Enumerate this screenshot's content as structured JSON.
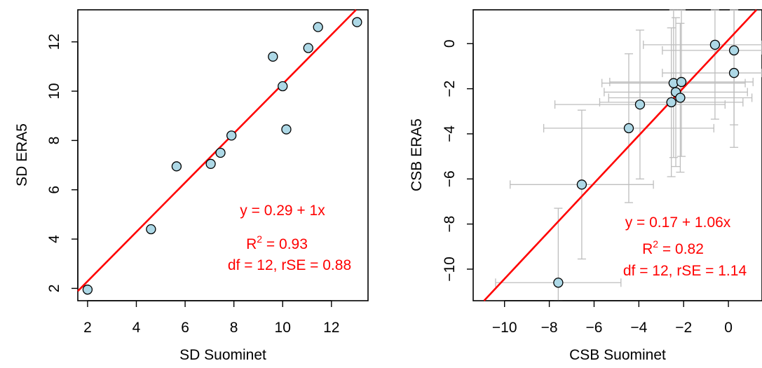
{
  "chart_data": [
    {
      "type": "scatter",
      "xlabel": "SD Suominet",
      "ylabel": "SD ERA5",
      "xlim": [
        1.6,
        13.5
      ],
      "ylim": [
        1.5,
        13.3
      ],
      "xticks": [
        2,
        4,
        6,
        8,
        10,
        12
      ],
      "yticks": [
        2,
        4,
        6,
        8,
        10,
        12
      ],
      "points": [
        {
          "x": 2.0,
          "y": 1.95
        },
        {
          "x": 4.6,
          "y": 4.4
        },
        {
          "x": 5.65,
          "y": 6.95
        },
        {
          "x": 7.05,
          "y": 7.05
        },
        {
          "x": 7.45,
          "y": 7.5
        },
        {
          "x": 7.9,
          "y": 8.2
        },
        {
          "x": 9.6,
          "y": 11.4
        },
        {
          "x": 10.0,
          "y": 10.2
        },
        {
          "x": 10.15,
          "y": 8.45
        },
        {
          "x": 11.05,
          "y": 11.75
        },
        {
          "x": 11.45,
          "y": 12.6
        },
        {
          "x": 13.05,
          "y": 12.8
        }
      ],
      "fit": {
        "intercept": 0.29,
        "slope": 1.0
      },
      "annotations": [
        "y = 0.29 + 1x",
        "R",
        "2",
        " = 0.93",
        "df = 12, rSE = 0.88"
      ],
      "colors": {
        "points_fill": "#add8e6",
        "fit_line": "#ff0000",
        "annotation": "#ff0000"
      },
      "grid": false
    },
    {
      "type": "scatter",
      "xlabel": "CSB Suominet",
      "ylabel": "CSB ERA5",
      "xlim": [
        -11.4,
        1.5
      ],
      "ylim": [
        -11.4,
        1.5
      ],
      "xticks": [
        -10,
        -8,
        -6,
        -4,
        -2,
        0
      ],
      "yticks": [
        -10,
        -8,
        -6,
        -4,
        -2,
        0
      ],
      "xtick_labels": [
        "−10",
        "−8",
        "−6",
        "−4",
        "−2",
        "0"
      ],
      "ytick_labels": [
        "−10",
        "−8",
        "−6",
        "−4",
        "−2",
        "0"
      ],
      "points": [
        {
          "x": -7.6,
          "y": -10.6,
          "xerr": 2.8,
          "yerr": 3.3
        },
        {
          "x": -6.55,
          "y": -6.25,
          "xerr": 3.2,
          "yerr": 3.3
        },
        {
          "x": -4.45,
          "y": -3.75,
          "xerr": 3.8,
          "yerr": 3.3
        },
        {
          "x": -3.95,
          "y": -2.7,
          "xerr": 3.8,
          "yerr": 3.3
        },
        {
          "x": -2.55,
          "y": -2.6,
          "xerr": 3.2,
          "yerr": 3.3
        },
        {
          "x": -2.45,
          "y": -1.75,
          "xerr": 3.2,
          "yerr": 3.3
        },
        {
          "x": -2.35,
          "y": -2.15,
          "xerr": 3.2,
          "yerr": 3.3
        },
        {
          "x": -2.15,
          "y": -2.4,
          "xerr": 3.2,
          "yerr": 3.3
        },
        {
          "x": -2.1,
          "y": -1.7,
          "xerr": 3.2,
          "yerr": 3.3
        },
        {
          "x": -0.6,
          "y": -0.05,
          "xerr": 3.2,
          "yerr": 3.3
        },
        {
          "x": 0.25,
          "y": -0.3,
          "xerr": 3.2,
          "yerr": 3.3
        },
        {
          "x": 0.25,
          "y": -1.3,
          "xerr": 3.2,
          "yerr": 3.3
        }
      ],
      "fit": {
        "intercept": 0.17,
        "slope": 1.06
      },
      "annotations": [
        "y = 0.17 + 1.06x",
        "R",
        "2",
        " = 0.82",
        "df = 12, rSE = 1.14"
      ],
      "colors": {
        "points_fill": "#add8e6",
        "fit_line": "#ff0000",
        "annotation": "#ff0000",
        "error_bars": "#bebebe"
      },
      "grid": false
    }
  ]
}
